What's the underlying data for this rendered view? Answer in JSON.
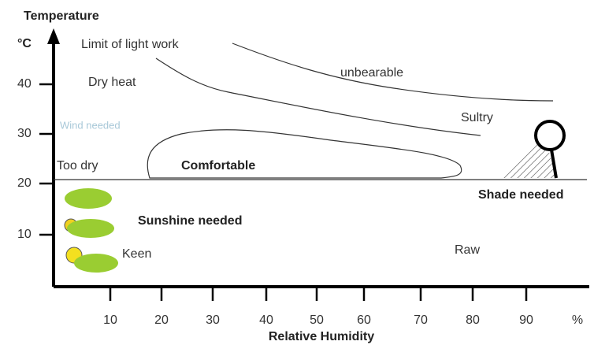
{
  "y_axis": {
    "title": "Temperature",
    "unit": "°C",
    "ticks": [
      "40",
      "30",
      "20",
      "10"
    ]
  },
  "x_axis": {
    "title": "Relative  Humidity",
    "unit": "%",
    "ticks": [
      "10",
      "20",
      "30",
      "40",
      "50",
      "60",
      "70",
      "80",
      "90"
    ]
  },
  "zones": {
    "limit": "Limit of light work",
    "dry_heat": "Dry heat",
    "unbearable": "unbearable",
    "sultry": "Sultry",
    "wind": "Wind needed",
    "too_dry": "Too dry",
    "comfortable": "Comfortable",
    "shade": "Shade needed",
    "sunshine": "Sunshine needed",
    "keen": "Keen",
    "raw": "Raw"
  }
}
